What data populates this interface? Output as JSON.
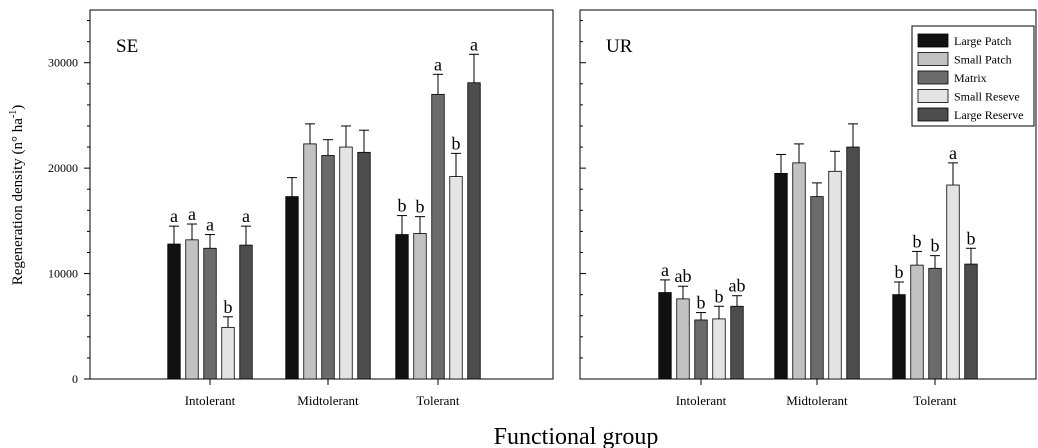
{
  "figure": {
    "ylabel_main": "Regeneration density (n° ha",
    "ylabel_sup": "-1",
    "ylabel_close": ")",
    "xlabel": "Functional group"
  },
  "chart_data": [
    {
      "type": "bar",
      "panel_label": "SE",
      "categories": [
        "Intolerant",
        "Midtolerant",
        "Tolerant"
      ],
      "ylim": [
        0,
        35000
      ],
      "yticks": [
        0,
        10000,
        20000,
        30000
      ],
      "series": [
        {
          "name": "Large Patch",
          "color": "#111111",
          "values": [
            12800,
            17300,
            13700
          ],
          "errors": [
            1700,
            1800,
            1800
          ],
          "letters": [
            "a",
            "",
            "b"
          ]
        },
        {
          "name": "Small Patch",
          "color": "#c2c2c2",
          "values": [
            13200,
            22300,
            13800
          ],
          "errors": [
            1500,
            1900,
            1600
          ],
          "letters": [
            "a",
            "",
            "b"
          ]
        },
        {
          "name": "Matrix",
          "color": "#6b6b6b",
          "values": [
            12400,
            21200,
            27000
          ],
          "errors": [
            1300,
            1500,
            1900
          ],
          "letters": [
            "a",
            "",
            "a"
          ]
        },
        {
          "name": "Small Reseve",
          "color": "#e4e4e4",
          "values": [
            4900,
            22000,
            19200
          ],
          "errors": [
            1000,
            2000,
            2200
          ],
          "letters": [
            "b",
            "",
            "b"
          ]
        },
        {
          "name": "Large Reserve",
          "color": "#4d4d4d",
          "values": [
            12700,
            21500,
            28100
          ],
          "errors": [
            1800,
            2100,
            2700
          ],
          "letters": [
            "a",
            "",
            "a"
          ]
        }
      ],
      "legend": "none"
    },
    {
      "type": "bar",
      "panel_label": "UR",
      "categories": [
        "Intolerant",
        "Midtolerant",
        "Tolerant"
      ],
      "ylim": [
        0,
        35000
      ],
      "yticks": [
        0,
        10000,
        20000,
        30000
      ],
      "series": [
        {
          "name": "Large Patch",
          "color": "#111111",
          "values": [
            8200,
            19500,
            8000
          ],
          "errors": [
            1200,
            1800,
            1200
          ],
          "letters": [
            "a",
            "",
            "b"
          ]
        },
        {
          "name": "Small Patch",
          "color": "#c2c2c2",
          "values": [
            7600,
            20500,
            10800
          ],
          "errors": [
            1200,
            1800,
            1300
          ],
          "letters": [
            "ab",
            "",
            "b"
          ]
        },
        {
          "name": "Matrix",
          "color": "#6b6b6b",
          "values": [
            5600,
            17300,
            10500
          ],
          "errors": [
            700,
            1300,
            1200
          ],
          "letters": [
            "b",
            "",
            "b"
          ]
        },
        {
          "name": "Small Reseve",
          "color": "#e4e4e4",
          "values": [
            5700,
            19700,
            18400
          ],
          "errors": [
            1200,
            1900,
            2100
          ],
          "letters": [
            "b",
            "",
            "a"
          ]
        },
        {
          "name": "Large Reserve",
          "color": "#4d4d4d",
          "values": [
            6900,
            22000,
            10900
          ],
          "errors": [
            1000,
            2200,
            1500
          ],
          "letters": [
            "ab",
            "",
            "b"
          ]
        }
      ],
      "legend": "top-right"
    }
  ]
}
